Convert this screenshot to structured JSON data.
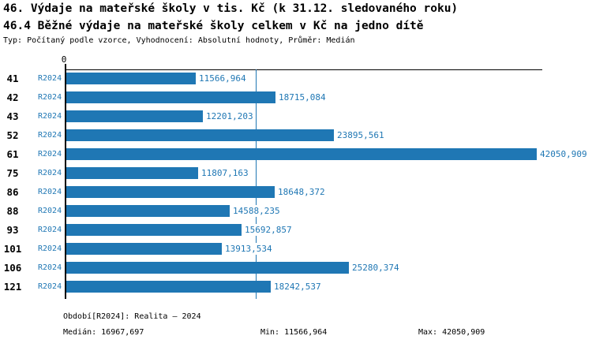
{
  "header": {
    "title_line1": "46. Výdaje na mateřské školy v tis. Kč (k 31.12. sledovaného roku)",
    "title_line2": "46.4 Běžné výdaje na mateřské školy celkem v Kč na jedno dítě",
    "meta_line": "Typ: Počítaný podle vzorce, Vyhodnocení: Absolutní hodnoty, Průměr: Medián"
  },
  "chart_data": {
    "type": "bar",
    "orientation": "horizontal",
    "title": "46.4 Běžné výdaje na mateřské školy celkem v Kč na jedno dítě",
    "categories": [
      "41",
      "42",
      "43",
      "52",
      "61",
      "75",
      "86",
      "88",
      "93",
      "101",
      "106",
      "121"
    ],
    "series_label": "R2024",
    "values": [
      11566.964,
      18715.084,
      12201.203,
      23895.561,
      42050.909,
      11807.163,
      18648.372,
      14588.235,
      15692.857,
      13913.534,
      25280.374,
      18242.537
    ],
    "value_labels": [
      "11566,964",
      "18715,084",
      "12201,203",
      "23895,561",
      "42050,909",
      "11807,163",
      "18648,372",
      "14588,235",
      "15692,857",
      "13913,534",
      "25280,374",
      "18242,537"
    ],
    "xlim": [
      0,
      42050.909
    ],
    "zero_tick_label": "0",
    "median_value": 16967.697,
    "legend_position": "none",
    "grid": false,
    "bar_color": "#1f77b4",
    "median_line_color": "#1f77b4",
    "label_color": "#1f77b4"
  },
  "footer": {
    "period_label": "Období[R2024]: Realita – 2024",
    "median_label": "Medián: 16967,697",
    "min_label": "Min: 11566,964",
    "max_label": "Max: 42050,909"
  }
}
